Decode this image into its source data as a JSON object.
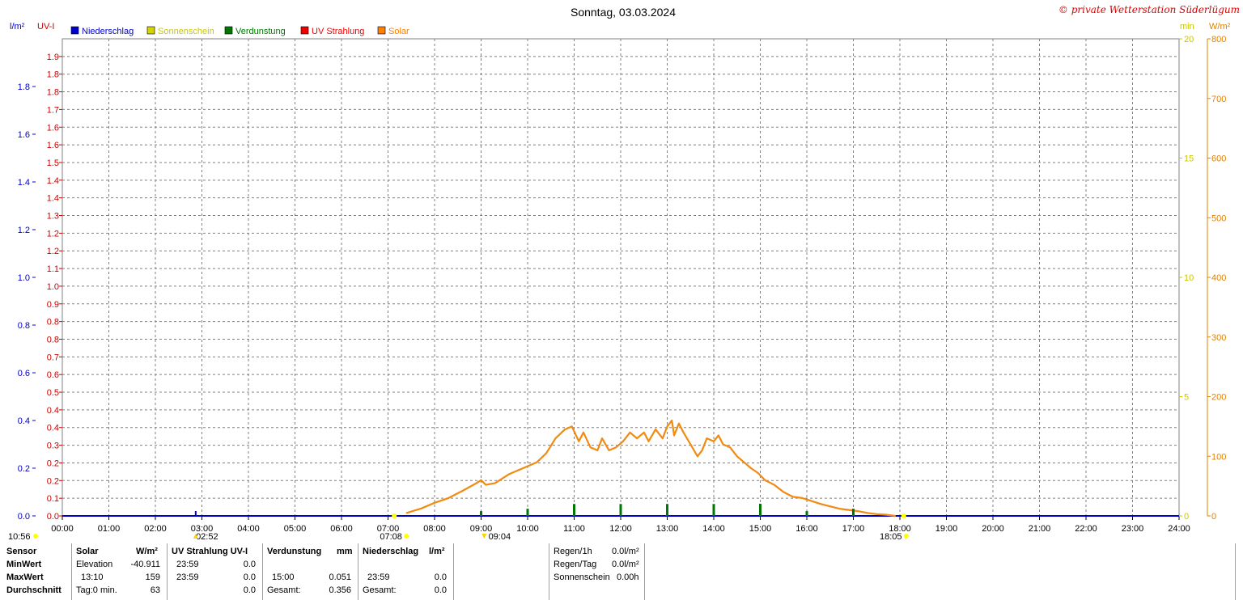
{
  "title": "Sonntag, 03.03.2024",
  "copyright": "© private Wetterstation Süderlügum",
  "units": {
    "left1": "l/m²",
    "left2": "UV-I",
    "right1": "min",
    "right2": "W/m²"
  },
  "legend": [
    {
      "label": "Niederschlag",
      "color": "#0000cc",
      "text_color": "#0000cc"
    },
    {
      "label": "Sonnenschein",
      "color": "#d4d400",
      "text_color": "#c8c800"
    },
    {
      "label": "Verdunstung",
      "color": "#007700",
      "text_color": "#007700"
    },
    {
      "label": "UV Strahlung",
      "color": "#ee0000",
      "text_color": "#ee0000"
    },
    {
      "label": "Solar",
      "color": "#ff7f00",
      "text_color": "#ff7f00"
    }
  ],
  "colors": {
    "precip": "#0000cc",
    "uv": "#cc0000",
    "sun": "#c8c800",
    "solar": "#f28a10",
    "evap": "#007700",
    "grid": "#808080"
  },
  "markers": {
    "sunrise_label": "07:08",
    "sunset_label": "18:05",
    "moonset_label": "09:04",
    "moonrise_label": "02:52",
    "daylength_label": "10:56"
  },
  "chart_data": {
    "type": "line",
    "title": "Sonntag, 03.03.2024",
    "x_ticks": [
      "00:00",
      "01:00",
      "02:00",
      "03:00",
      "04:00",
      "05:00",
      "06:00",
      "07:00",
      "08:00",
      "09:00",
      "10:00",
      "11:00",
      "12:00",
      "13:00",
      "14:00",
      "15:00",
      "16:00",
      "17:00",
      "18:00",
      "19:00",
      "20:00",
      "21:00",
      "22:00",
      "23:00",
      "24:00"
    ],
    "xlim": [
      0,
      24
    ],
    "axes": {
      "precip": {
        "label": "l/m²",
        "ylim": [
          0,
          2
        ],
        "ticks": [
          "0.0",
          "0.2",
          "0.4",
          "0.6",
          "0.8",
          "1.0",
          "1.2",
          "1.4",
          "1.6",
          "1.8"
        ]
      },
      "uv": {
        "label": "UV-I",
        "ylim": [
          0,
          2
        ],
        "ticks": [
          "0.0",
          "0.1",
          "0.2",
          "0.2",
          "0.3",
          "0.4",
          "0.4",
          "0.5",
          "0.6",
          "0.7",
          "0.8",
          "0.8",
          "0.9",
          "1.0",
          "1.1",
          "1.2",
          "1.2",
          "1.3",
          "1.4",
          "1.4",
          "1.5",
          "1.6",
          "1.6",
          "1.7",
          "1.8",
          "1.8",
          "1.9"
        ]
      },
      "sunshine": {
        "label": "min",
        "ylim": [
          0,
          20
        ],
        "ticks": [
          "0",
          "5",
          "10",
          "15",
          "20"
        ]
      },
      "solar": {
        "label": "W/m²",
        "ylim": [
          0,
          800
        ],
        "ticks": [
          "0",
          "100",
          "200",
          "300",
          "400",
          "500",
          "600",
          "700",
          "800"
        ]
      }
    },
    "grid": true,
    "series": [
      {
        "name": "Solar",
        "axis": "solar",
        "x": [
          7.4,
          7.7,
          8.0,
          8.3,
          8.6,
          8.9,
          9.0,
          9.1,
          9.3,
          9.6,
          9.9,
          10.2,
          10.4,
          10.6,
          10.8,
          10.95,
          11.1,
          11.2,
          11.35,
          11.5,
          11.6,
          11.75,
          11.9,
          12.05,
          12.2,
          12.35,
          12.5,
          12.6,
          12.75,
          12.9,
          13.0,
          13.1,
          13.15,
          13.25,
          13.35,
          13.5,
          13.65,
          13.75,
          13.85,
          14.0,
          14.1,
          14.2,
          14.35,
          14.5,
          14.65,
          14.8,
          14.95,
          15.1,
          15.3,
          15.5,
          15.7,
          15.9,
          16.1,
          16.3,
          16.5,
          16.7,
          16.9,
          17.1,
          17.3,
          17.5,
          17.7,
          17.9
        ],
        "values": [
          5,
          12,
          22,
          30,
          42,
          55,
          60,
          52,
          55,
          70,
          80,
          90,
          105,
          130,
          145,
          150,
          125,
          140,
          115,
          110,
          130,
          110,
          115,
          125,
          140,
          130,
          140,
          125,
          145,
          130,
          150,
          160,
          135,
          155,
          140,
          120,
          100,
          110,
          130,
          125,
          135,
          120,
          115,
          100,
          90,
          80,
          72,
          60,
          52,
          40,
          32,
          30,
          25,
          20,
          16,
          12,
          10,
          8,
          5,
          3,
          2,
          0
        ]
      },
      {
        "name": "Verdunstung",
        "axis": "precip",
        "x": [
          9.0,
          10.0,
          11.0,
          12.0,
          13.0,
          14.0,
          15.0,
          16.0,
          17.0
        ],
        "values": [
          0.02,
          0.03,
          0.05,
          0.05,
          0.05,
          0.05,
          0.051,
          0.02,
          0.03
        ]
      }
    ]
  },
  "stats": {
    "headers": {
      "sensor": "Sensor",
      "solar": "Solar",
      "solar_unit": "W/m²",
      "uv": "UV Strahlung UV-I",
      "evap": "Verdunstung",
      "evap_unit": "mm",
      "precip": "Niederschlag",
      "precip_unit": "l/m²"
    },
    "rows": [
      {
        "label": "MinWert",
        "solar_time": "Elevation",
        "solar_val": "-40.911",
        "uv_time": "23:59",
        "uv_val": "0.0",
        "evap_time": "",
        "evap_val": "",
        "precip_time": "",
        "precip_val": ""
      },
      {
        "label": "MaxWert",
        "solar_time": "13:10",
        "solar_val": "159",
        "uv_time": "23:59",
        "uv_val": "0.0",
        "evap_time": "15:00",
        "evap_val": "0.051",
        "precip_time": "23:59",
        "precip_val": "0.0"
      },
      {
        "label": "Durchschnitt",
        "solar_time": "Tag:0 min.",
        "solar_val": "63",
        "uv_time": "",
        "uv_val": "0.0",
        "evap_time": "Gesamt:",
        "evap_val": "0.356",
        "precip_time": "Gesamt:",
        "precip_val": "0.0"
      }
    ],
    "rain": [
      {
        "label": "Regen/1h",
        "value": "0.0l/m²"
      },
      {
        "label": "Regen/Tag",
        "value": "0.0l/m²"
      },
      {
        "label": "Sonnenschein",
        "value": "0.00h"
      }
    ]
  }
}
